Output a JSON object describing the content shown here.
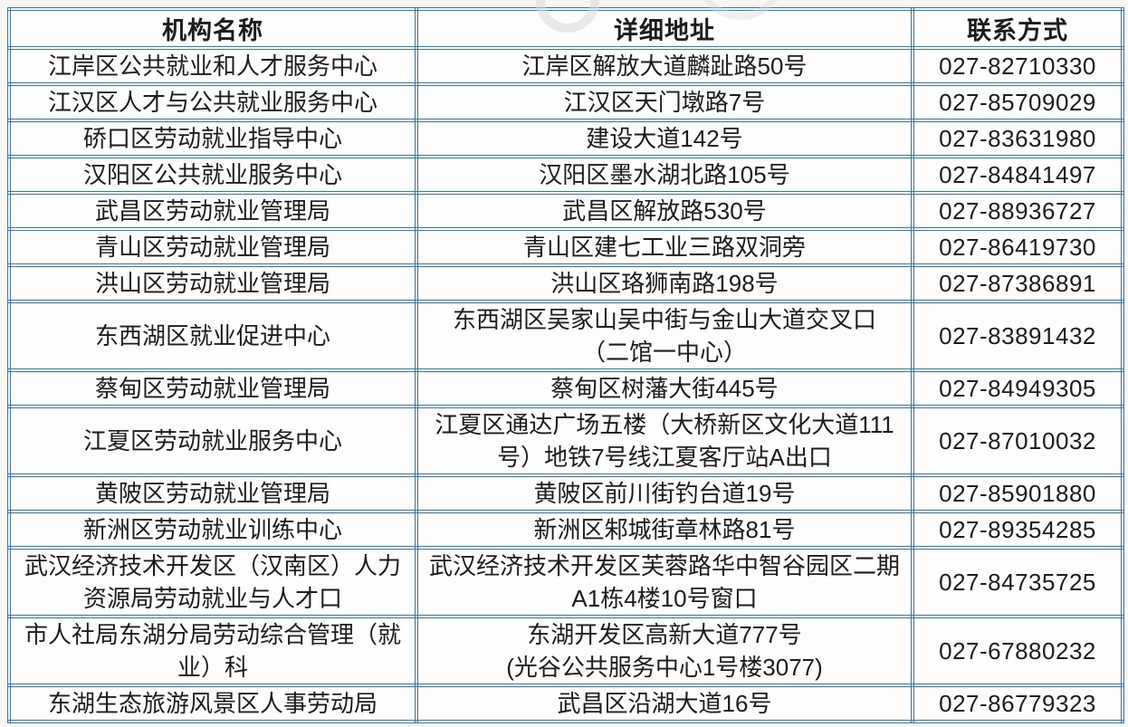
{
  "colors": {
    "table_border": "#2b79ba",
    "text": "#1c1c1c",
    "page_background": "#f7f7f4",
    "watermark": "#d9d9d9"
  },
  "header": {
    "columns": [
      "机构名称",
      "详细地址",
      "联系方式"
    ]
  },
  "rows": [
    {
      "name": "江岸区公共就业和人才服务中心",
      "address": "江岸区解放大道麟趾路50号",
      "phone": "027-82710330"
    },
    {
      "name": "江汉区人才与公共就业服务中心",
      "address": "江汉区天门墩路7号",
      "phone": "027-85709029"
    },
    {
      "name": "硚口区劳动就业指导中心",
      "address": "建设大道142号",
      "phone": "027-83631980"
    },
    {
      "name": "汉阳区公共就业服务中心",
      "address": "汉阳区墨水湖北路105号",
      "phone": "027-84841497"
    },
    {
      "name": "武昌区劳动就业管理局",
      "address": "武昌区解放路530号",
      "phone": "027-88936727"
    },
    {
      "name": "青山区劳动就业管理局",
      "address": "青山区建七工业三路双洞旁",
      "phone": "027-86419730"
    },
    {
      "name": "洪山区劳动就业管理局",
      "address": "洪山区珞狮南路198号",
      "phone": "027-87386891"
    },
    {
      "name": "东西湖区就业促进中心",
      "address": [
        "东西湖区吴家山吴中街与金山大道交叉口",
        "（二馆一中心）"
      ],
      "phone": "027-83891432"
    },
    {
      "name": "蔡甸区劳动就业管理局",
      "address": "蔡甸区树藩大街445号",
      "phone": "027-84949305"
    },
    {
      "name": "江夏区劳动就业服务中心",
      "address": [
        "江夏区通达广场五楼（大桥新区文化大道111",
        "号）地铁7号线江夏客厅站A出口"
      ],
      "phone": "027-87010032"
    },
    {
      "name": "黄陂区劳动就业管理局",
      "address": "黄陂区前川街钓台道19号",
      "phone": "027-85901880"
    },
    {
      "name": "新洲区劳动就业训练中心",
      "address": "新洲区邾城街章林路81号",
      "phone": "027-89354285"
    },
    {
      "name": [
        "武汉经济技术开发区（汉南区）人力",
        "资源局劳动就业与人才口"
      ],
      "address": [
        "武汉经济技术开发区芙蓉路华中智谷园区二期",
        "A1栋4楼10号窗口"
      ],
      "phone": "027-84735725"
    },
    {
      "name": [
        "市人社局东湖分局劳动综合管理（就",
        "业）科"
      ],
      "address": [
        "东湖开发区高新大道777号",
        "(光谷公共服务中心1号楼3077)"
      ],
      "phone": "027-67880232"
    },
    {
      "name": "东湖生态旅游风景区人事劳动局",
      "address": "武昌区沿湖大道16号",
      "phone": "027-86779323"
    }
  ]
}
